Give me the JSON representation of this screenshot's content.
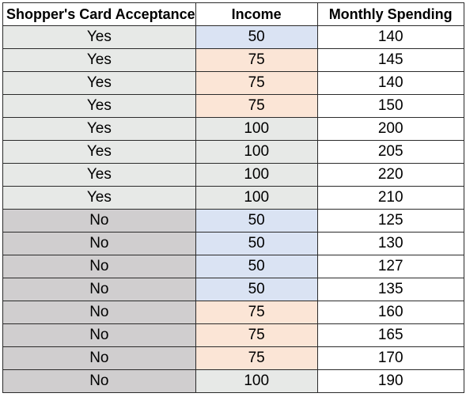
{
  "table": {
    "headers": [
      "Shopper's Card Acceptance",
      "Income",
      "Monthly Spending"
    ],
    "colors": {
      "yes_fill": "#e7e9e7",
      "no_fill": "#d0cecf",
      "income_50_fill": "#dae3f3",
      "income_75_fill": "#fbe5d6",
      "income_100_fill": "#e7e9e7",
      "spending_fill": "#ffffff"
    },
    "rows": [
      {
        "acceptance": "Yes",
        "income": "50",
        "spending": "140"
      },
      {
        "acceptance": "Yes",
        "income": "75",
        "spending": "145"
      },
      {
        "acceptance": "Yes",
        "income": "75",
        "spending": "140"
      },
      {
        "acceptance": "Yes",
        "income": "75",
        "spending": "150"
      },
      {
        "acceptance": "Yes",
        "income": "100",
        "spending": "200"
      },
      {
        "acceptance": "Yes",
        "income": "100",
        "spending": "205"
      },
      {
        "acceptance": "Yes",
        "income": "100",
        "spending": "220"
      },
      {
        "acceptance": "Yes",
        "income": "100",
        "spending": "210"
      },
      {
        "acceptance": "No",
        "income": "50",
        "spending": "125"
      },
      {
        "acceptance": "No",
        "income": "50",
        "spending": "130"
      },
      {
        "acceptance": "No",
        "income": "50",
        "spending": "127"
      },
      {
        "acceptance": "No",
        "income": "50",
        "spending": "135"
      },
      {
        "acceptance": "No",
        "income": "75",
        "spending": "160"
      },
      {
        "acceptance": "No",
        "income": "75",
        "spending": "165"
      },
      {
        "acceptance": "No",
        "income": "75",
        "spending": "170"
      },
      {
        "acceptance": "No",
        "income": "100",
        "spending": "190"
      }
    ]
  }
}
